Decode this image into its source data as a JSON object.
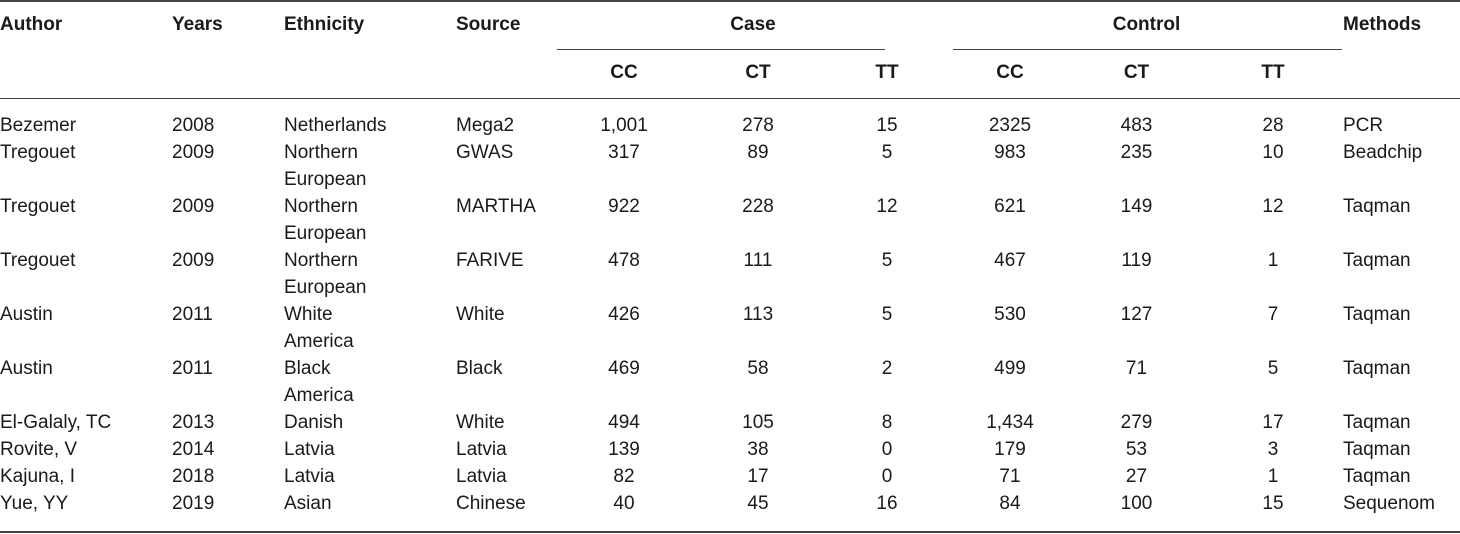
{
  "headers": {
    "author": "Author",
    "years": "Years",
    "ethnicity": "Ethnicity",
    "source": "Source",
    "case": "Case",
    "control": "Control",
    "methods": "Methods",
    "sub": [
      "CC",
      "CT",
      "TT",
      "CC",
      "CT",
      "TT"
    ]
  },
  "rows": [
    {
      "author": "Bezemer",
      "years": "2008",
      "eth1": "Netherlands",
      "eth2": "",
      "source": "Mega2",
      "case_cc": "1,001",
      "case_ct": "278",
      "case_tt": "15",
      "ctrl_cc": "2325",
      "ctrl_ct": "483",
      "ctrl_tt": "28",
      "method": "PCR"
    },
    {
      "author": "Tregouet",
      "years": "2009",
      "eth1": "Northern",
      "eth2": "European",
      "source": "GWAS",
      "case_cc": "317",
      "case_ct": "89",
      "case_tt": "5",
      "ctrl_cc": "983",
      "ctrl_ct": "235",
      "ctrl_tt": "10",
      "method": "Beadchip"
    },
    {
      "author": "Tregouet",
      "years": "2009",
      "eth1": "Northern",
      "eth2": "European",
      "source": "MARTHA",
      "case_cc": "922",
      "case_ct": "228",
      "case_tt": "12",
      "ctrl_cc": "621",
      "ctrl_ct": "149",
      "ctrl_tt": "12",
      "method": "Taqman"
    },
    {
      "author": "Tregouet",
      "years": "2009",
      "eth1": "Northern",
      "eth2": "European",
      "source": "FARIVE",
      "case_cc": "478",
      "case_ct": "111",
      "case_tt": "5",
      "ctrl_cc": "467",
      "ctrl_ct": "119",
      "ctrl_tt": "1",
      "method": "Taqman"
    },
    {
      "author": "Austin",
      "years": "2011",
      "eth1": "White",
      "eth2": "America",
      "source": "White",
      "case_cc": "426",
      "case_ct": "113",
      "case_tt": "5",
      "ctrl_cc": "530",
      "ctrl_ct": "127",
      "ctrl_tt": "7",
      "method": "Taqman"
    },
    {
      "author": "Austin",
      "years": "2011",
      "eth1": "Black",
      "eth2": "America",
      "source": "Black",
      "case_cc": "469",
      "case_ct": "58",
      "case_tt": "2",
      "ctrl_cc": "499",
      "ctrl_ct": "71",
      "ctrl_tt": "5",
      "method": "Taqman"
    },
    {
      "author": "El-Galaly, TC",
      "years": "2013",
      "eth1": "Danish",
      "eth2": "",
      "source": "White",
      "case_cc": "494",
      "case_ct": "105",
      "case_tt": "8",
      "ctrl_cc": "1,434",
      "ctrl_ct": "279",
      "ctrl_tt": "17",
      "method": "Taqman"
    },
    {
      "author": "Rovite, V",
      "years": "2014",
      "eth1": "Latvia",
      "eth2": "",
      "source": "Latvia",
      "case_cc": "139",
      "case_ct": "38",
      "case_tt": "0",
      "ctrl_cc": "179",
      "ctrl_ct": "53",
      "ctrl_tt": "3",
      "method": "Taqman"
    },
    {
      "author": "Kajuna, I",
      "years": "2018",
      "eth1": "Latvia",
      "eth2": "",
      "source": "Latvia",
      "case_cc": "82",
      "case_ct": "17",
      "case_tt": "0",
      "ctrl_cc": "71",
      "ctrl_ct": "27",
      "ctrl_tt": "1",
      "method": "Taqman"
    },
    {
      "author": "Yue, YY",
      "years": "2019",
      "eth1": "Asian",
      "eth2": "",
      "source": "Chinese",
      "case_cc": "40",
      "case_ct": "45",
      "case_tt": "16",
      "ctrl_cc": "84",
      "ctrl_ct": "100",
      "ctrl_tt": "15",
      "method": "Sequenom"
    }
  ]
}
